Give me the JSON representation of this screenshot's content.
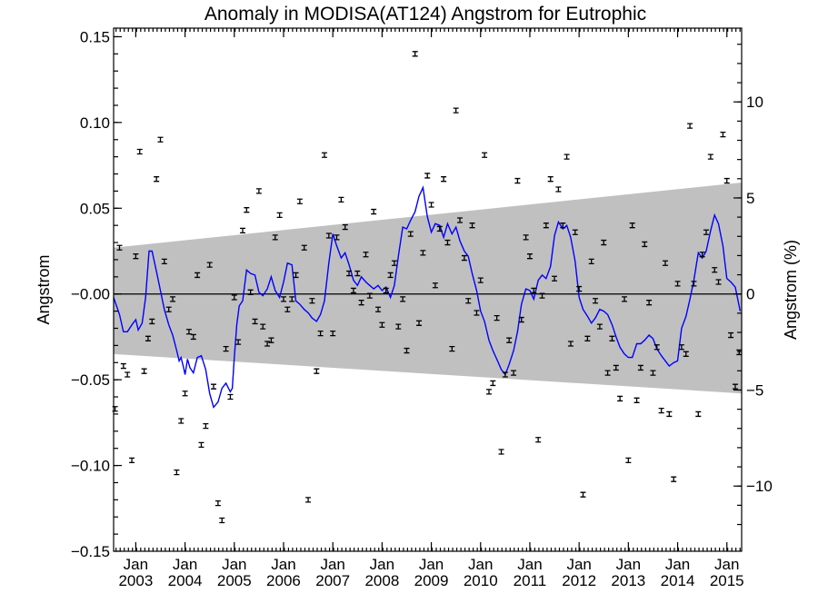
{
  "chart_data": {
    "type": "scatter",
    "title": "Anomaly in MODISA(AT124) Angstrom for Eutrophic",
    "ylabel": "Angstrom",
    "ylabel_right": "Angstrom (%)",
    "xlabel": "",
    "xlim": [
      2002.55,
      2015.3
    ],
    "ylim": [
      -0.15,
      0.155
    ],
    "y_ticks": [
      -0.15,
      -0.1,
      -0.05,
      0.0,
      0.05,
      0.1,
      0.15
    ],
    "y_tick_labels": [
      "−0.15",
      "−0.10",
      "−0.05",
      "−0.00",
      "0.05",
      "0.10",
      "0.15"
    ],
    "y2_ticks": [
      -10,
      -5,
      0,
      5,
      10
    ],
    "y2_tick_labels": [
      "−10",
      "−5",
      "0",
      "5",
      "10"
    ],
    "y2_scale": 0.0112,
    "x_ticks": [
      {
        "x": 2003.0,
        "label1": "Jan",
        "label2": "2003"
      },
      {
        "x": 2004.0,
        "label1": "Jan",
        "label2": "2004"
      },
      {
        "x": 2005.0,
        "label1": "Jan",
        "label2": "2005"
      },
      {
        "x": 2006.0,
        "label1": "Jan",
        "label2": "2006"
      },
      {
        "x": 2007.0,
        "label1": "Jan",
        "label2": "2007"
      },
      {
        "x": 2008.0,
        "label1": "Jan",
        "label2": "2008"
      },
      {
        "x": 2009.0,
        "label1": "Jan",
        "label2": "2009"
      },
      {
        "x": 2010.0,
        "label1": "Jan",
        "label2": "2010"
      },
      {
        "x": 2011.0,
        "label1": "Jan",
        "label2": "2011"
      },
      {
        "x": 2012.0,
        "label1": "Jan",
        "label2": "2012"
      },
      {
        "x": 2013.0,
        "label1": "Jan",
        "label2": "2013"
      },
      {
        "x": 2014.0,
        "label1": "Jan",
        "label2": "2014"
      },
      {
        "x": 2015.0,
        "label1": "Jan",
        "label2": "2015"
      }
    ],
    "band": {
      "x_start": 2002.55,
      "upper_start": 0.027,
      "upper_end": 0.065,
      "x_end": 2015.3,
      "lower_start": -0.035,
      "lower_end": -0.058,
      "color": "#c0c0c0"
    },
    "zero_line": 0.0,
    "colors": {
      "points": "#000000",
      "running_mean": "#0000ff",
      "band": "#c0c0c0"
    },
    "points": [
      [
        2002.58,
        -0.067
      ],
      [
        2002.67,
        0.027
      ],
      [
        2002.75,
        -0.042
      ],
      [
        2002.83,
        -0.047
      ],
      [
        2002.92,
        -0.097
      ],
      [
        2003.0,
        0.022
      ],
      [
        2003.08,
        0.083
      ],
      [
        2003.17,
        -0.045
      ],
      [
        2003.25,
        -0.026
      ],
      [
        2003.33,
        -0.016
      ],
      [
        2003.42,
        0.067
      ],
      [
        2003.5,
        0.09
      ],
      [
        2003.58,
        0.019
      ],
      [
        2003.67,
        -0.009
      ],
      [
        2003.75,
        -0.003
      ],
      [
        2003.83,
        -0.104
      ],
      [
        2003.92,
        -0.074
      ],
      [
        2004.0,
        -0.058
      ],
      [
        2004.08,
        -0.022
      ],
      [
        2004.17,
        -0.025
      ],
      [
        2004.25,
        0.011
      ],
      [
        2004.33,
        -0.088
      ],
      [
        2004.42,
        -0.077
      ],
      [
        2004.5,
        0.017
      ],
      [
        2004.58,
        -0.054
      ],
      [
        2004.67,
        -0.122
      ],
      [
        2004.75,
        -0.132
      ],
      [
        2004.83,
        -0.032
      ],
      [
        2004.92,
        -0.06
      ],
      [
        2005.0,
        -0.002
      ],
      [
        2005.08,
        -0.028
      ],
      [
        2005.17,
        0.037
      ],
      [
        2005.25,
        0.049
      ],
      [
        2005.33,
        0.001
      ],
      [
        2005.42,
        -0.016
      ],
      [
        2005.5,
        0.06
      ],
      [
        2005.58,
        -0.019
      ],
      [
        2005.67,
        -0.029
      ],
      [
        2005.75,
        -0.027
      ],
      [
        2005.83,
        0.033
      ],
      [
        2005.92,
        0.046
      ],
      [
        2006.0,
        -0.003
      ],
      [
        2006.08,
        -0.009
      ],
      [
        2006.17,
        -0.003
      ],
      [
        2006.25,
        0.011
      ],
      [
        2006.33,
        0.054
      ],
      [
        2006.42,
        0.027
      ],
      [
        2006.5,
        -0.12
      ],
      [
        2006.58,
        -0.004
      ],
      [
        2006.67,
        -0.045
      ],
      [
        2006.75,
        -0.023
      ],
      [
        2006.83,
        0.081
      ],
      [
        2006.92,
        0.034
      ],
      [
        2007.0,
        -0.023
      ],
      [
        2007.08,
        0.033
      ],
      [
        2007.17,
        0.055
      ],
      [
        2007.25,
        0.039
      ],
      [
        2007.33,
        0.012
      ],
      [
        2007.42,
        0.002
      ],
      [
        2007.5,
        0.012
      ],
      [
        2007.58,
        -0.005
      ],
      [
        2007.67,
        0.023
      ],
      [
        2007.75,
        -0.001
      ],
      [
        2007.83,
        0.048
      ],
      [
        2007.92,
        -0.009
      ],
      [
        2008.0,
        -0.018
      ],
      [
        2008.08,
        0.002
      ],
      [
        2008.17,
        0.011
      ],
      [
        2008.25,
        0.018
      ],
      [
        2008.33,
        -0.019
      ],
      [
        2008.42,
        -0.003
      ],
      [
        2008.5,
        -0.033
      ],
      [
        2008.58,
        0.035
      ],
      [
        2008.67,
        0.14
      ],
      [
        2008.75,
        -0.017
      ],
      [
        2008.83,
        0.024
      ],
      [
        2008.92,
        0.069
      ],
      [
        2009.0,
        0.052
      ],
      [
        2009.08,
        0.005
      ],
      [
        2009.17,
        0.038
      ],
      [
        2009.25,
        0.067
      ],
      [
        2009.33,
        0.03
      ],
      [
        2009.42,
        -0.032
      ],
      [
        2009.5,
        0.107
      ],
      [
        2009.58,
        0.043
      ],
      [
        2009.67,
        0.021
      ],
      [
        2009.75,
        -0.004
      ],
      [
        2009.83,
        0.04
      ],
      [
        2009.92,
        -0.011
      ],
      [
        2010.0,
        0.008
      ],
      [
        2010.08,
        0.081
      ],
      [
        2010.17,
        -0.057
      ],
      [
        2010.25,
        -0.052
      ],
      [
        2010.33,
        -0.014
      ],
      [
        2010.42,
        -0.092
      ],
      [
        2010.5,
        -0.047
      ],
      [
        2010.58,
        -0.027
      ],
      [
        2010.67,
        -0.046
      ],
      [
        2010.75,
        0.066
      ],
      [
        2010.83,
        -0.015
      ],
      [
        2010.92,
        0.033
      ],
      [
        2011.0,
        0.022
      ],
      [
        2011.08,
        0.002
      ],
      [
        2011.17,
        -0.085
      ],
      [
        2011.25,
        -0.001
      ],
      [
        2011.33,
        0.04
      ],
      [
        2011.42,
        0.067
      ],
      [
        2011.5,
        0.009
      ],
      [
        2011.58,
        0.061
      ],
      [
        2011.67,
        0.04
      ],
      [
        2011.75,
        0.08
      ],
      [
        2011.83,
        -0.029
      ],
      [
        2011.92,
        0.036
      ],
      [
        2012.0,
        0.003
      ],
      [
        2012.08,
        -0.117
      ],
      [
        2012.17,
        -0.026
      ],
      [
        2012.25,
        0.019
      ],
      [
        2012.33,
        -0.004
      ],
      [
        2012.42,
        -0.019
      ],
      [
        2012.5,
        0.03
      ],
      [
        2012.58,
        -0.046
      ],
      [
        2012.67,
        -0.026
      ],
      [
        2012.75,
        -0.043
      ],
      [
        2012.83,
        -0.061
      ],
      [
        2012.92,
        -0.003
      ],
      [
        2013.0,
        -0.097
      ],
      [
        2013.08,
        0.04
      ],
      [
        2013.17,
        -0.062
      ],
      [
        2013.25,
        -0.043
      ],
      [
        2013.33,
        0.029
      ],
      [
        2013.42,
        -0.005
      ],
      [
        2013.5,
        -0.046
      ],
      [
        2013.58,
        -0.031
      ],
      [
        2013.67,
        -0.068
      ],
      [
        2013.75,
        0.018
      ],
      [
        2013.83,
        -0.07
      ],
      [
        2013.92,
        -0.108
      ],
      [
        2014.0,
        0.006
      ],
      [
        2014.08,
        -0.031
      ],
      [
        2014.17,
        -0.035
      ],
      [
        2014.25,
        0.098
      ],
      [
        2014.33,
        0.006
      ],
      [
        2014.42,
        -0.07
      ],
      [
        2014.5,
        0.023
      ],
      [
        2014.58,
        0.036
      ],
      [
        2014.67,
        0.08
      ],
      [
        2014.75,
        0.014
      ],
      [
        2014.83,
        0.007
      ],
      [
        2014.92,
        0.093
      ],
      [
        2015.0,
        0.066
      ],
      [
        2015.08,
        -0.024
      ],
      [
        2015.17,
        -0.054
      ],
      [
        2015.25,
        -0.034
      ]
    ],
    "running_mean": [
      [
        2002.55,
        -0.002
      ],
      [
        2002.67,
        -0.012
      ],
      [
        2002.75,
        -0.022
      ],
      [
        2002.83,
        -0.022
      ],
      [
        2002.92,
        -0.018
      ],
      [
        2003.0,
        -0.015
      ],
      [
        2003.05,
        -0.021
      ],
      [
        2003.13,
        -0.017
      ],
      [
        2003.2,
        -0.002
      ],
      [
        2003.27,
        0.025
      ],
      [
        2003.33,
        0.025
      ],
      [
        2003.42,
        0.013
      ],
      [
        2003.5,
        0.002
      ],
      [
        2003.58,
        -0.009
      ],
      [
        2003.67,
        -0.018
      ],
      [
        2003.75,
        -0.024
      ],
      [
        2003.83,
        -0.033
      ],
      [
        2003.88,
        -0.039
      ],
      [
        2003.92,
        -0.037
      ],
      [
        2003.97,
        -0.043
      ],
      [
        2004.0,
        -0.047
      ],
      [
        2004.05,
        -0.038
      ],
      [
        2004.1,
        -0.043
      ],
      [
        2004.17,
        -0.046
      ],
      [
        2004.25,
        -0.037
      ],
      [
        2004.33,
        -0.036
      ],
      [
        2004.42,
        -0.044
      ],
      [
        2004.5,
        -0.058
      ],
      [
        2004.58,
        -0.066
      ],
      [
        2004.67,
        -0.063
      ],
      [
        2004.75,
        -0.055
      ],
      [
        2004.83,
        -0.052
      ],
      [
        2004.92,
        -0.057
      ],
      [
        2004.96,
        -0.055
      ],
      [
        2005.0,
        -0.037
      ],
      [
        2005.05,
        -0.018
      ],
      [
        2005.1,
        -0.007
      ],
      [
        2005.17,
        -0.004
      ],
      [
        2005.25,
        0.014
      ],
      [
        2005.33,
        0.012
      ],
      [
        2005.42,
        0.011
      ],
      [
        2005.5,
        0.001
      ],
      [
        2005.58,
        -0.001
      ],
      [
        2005.67,
        0.003
      ],
      [
        2005.75,
        0.01
      ],
      [
        2005.83,
        0.002
      ],
      [
        2005.92,
        -0.002
      ],
      [
        2006.0,
        0.007
      ],
      [
        2006.08,
        0.018
      ],
      [
        2006.17,
        0.017
      ],
      [
        2006.25,
        -0.004
      ],
      [
        2006.33,
        -0.006
      ],
      [
        2006.42,
        -0.009
      ],
      [
        2006.5,
        -0.011
      ],
      [
        2006.58,
        -0.014
      ],
      [
        2006.67,
        -0.016
      ],
      [
        2006.75,
        -0.012
      ],
      [
        2006.83,
        -0.004
      ],
      [
        2006.92,
        0.018
      ],
      [
        2007.0,
        0.035
      ],
      [
        2007.08,
        0.028
      ],
      [
        2007.17,
        0.021
      ],
      [
        2007.25,
        0.024
      ],
      [
        2007.33,
        0.017
      ],
      [
        2007.42,
        0.008
      ],
      [
        2007.5,
        0.005
      ],
      [
        2007.58,
        0.01
      ],
      [
        2007.67,
        0.007
      ],
      [
        2007.75,
        0.005
      ],
      [
        2007.83,
        0.003
      ],
      [
        2007.92,
        0.005
      ],
      [
        2008.0,
        0.002
      ],
      [
        2008.08,
        0.004
      ],
      [
        2008.17,
        -0.002
      ],
      [
        2008.25,
        0.005
      ],
      [
        2008.33,
        0.022
      ],
      [
        2008.42,
        0.039
      ],
      [
        2008.5,
        0.038
      ],
      [
        2008.58,
        0.043
      ],
      [
        2008.67,
        0.048
      ],
      [
        2008.75,
        0.057
      ],
      [
        2008.83,
        0.062
      ],
      [
        2008.92,
        0.045
      ],
      [
        2009.0,
        0.036
      ],
      [
        2009.08,
        0.041
      ],
      [
        2009.17,
        0.04
      ],
      [
        2009.25,
        0.033
      ],
      [
        2009.33,
        0.041
      ],
      [
        2009.42,
        0.035
      ],
      [
        2009.5,
        0.039
      ],
      [
        2009.58,
        0.031
      ],
      [
        2009.67,
        0.025
      ],
      [
        2009.75,
        0.022
      ],
      [
        2009.83,
        0.012
      ],
      [
        2009.92,
        0.002
      ],
      [
        2010.0,
        -0.01
      ],
      [
        2010.08,
        -0.016
      ],
      [
        2010.17,
        -0.027
      ],
      [
        2010.25,
        -0.033
      ],
      [
        2010.33,
        -0.038
      ],
      [
        2010.42,
        -0.044
      ],
      [
        2010.5,
        -0.047
      ],
      [
        2010.58,
        -0.041
      ],
      [
        2010.67,
        -0.033
      ],
      [
        2010.75,
        -0.022
      ],
      [
        2010.83,
        -0.006
      ],
      [
        2010.92,
        0.003
      ],
      [
        2011.0,
        0.002
      ],
      [
        2011.08,
        -0.003
      ],
      [
        2011.17,
        0.008
      ],
      [
        2011.25,
        0.011
      ],
      [
        2011.33,
        0.009
      ],
      [
        2011.42,
        0.016
      ],
      [
        2011.5,
        0.034
      ],
      [
        2011.58,
        0.042
      ],
      [
        2011.67,
        0.038
      ],
      [
        2011.75,
        0.04
      ],
      [
        2011.83,
        0.033
      ],
      [
        2011.92,
        0.019
      ],
      [
        2012.0,
        -0.002
      ],
      [
        2012.08,
        -0.009
      ],
      [
        2012.17,
        -0.013
      ],
      [
        2012.25,
        -0.017
      ],
      [
        2012.33,
        -0.014
      ],
      [
        2012.42,
        -0.009
      ],
      [
        2012.5,
        -0.01
      ],
      [
        2012.58,
        -0.012
      ],
      [
        2012.67,
        -0.018
      ],
      [
        2012.75,
        -0.025
      ],
      [
        2012.83,
        -0.031
      ],
      [
        2012.92,
        -0.035
      ],
      [
        2013.0,
        -0.037
      ],
      [
        2013.08,
        -0.037
      ],
      [
        2013.17,
        -0.029
      ],
      [
        2013.25,
        -0.029
      ],
      [
        2013.33,
        -0.027
      ],
      [
        2013.42,
        -0.024
      ],
      [
        2013.5,
        -0.026
      ],
      [
        2013.58,
        -0.032
      ],
      [
        2013.67,
        -0.036
      ],
      [
        2013.75,
        -0.039
      ],
      [
        2013.83,
        -0.042
      ],
      [
        2013.92,
        -0.04
      ],
      [
        2014.0,
        -0.039
      ],
      [
        2014.08,
        -0.02
      ],
      [
        2014.17,
        -0.013
      ],
      [
        2014.25,
        -0.003
      ],
      [
        2014.33,
        0.008
      ],
      [
        2014.42,
        0.024
      ],
      [
        2014.5,
        0.021
      ],
      [
        2014.58,
        0.025
      ],
      [
        2014.67,
        0.037
      ],
      [
        2014.75,
        0.046
      ],
      [
        2014.83,
        0.041
      ],
      [
        2014.92,
        0.028
      ],
      [
        2015.0,
        0.009
      ],
      [
        2015.08,
        0.007
      ],
      [
        2015.17,
        0.004
      ],
      [
        2015.27,
        -0.01
      ]
    ]
  }
}
